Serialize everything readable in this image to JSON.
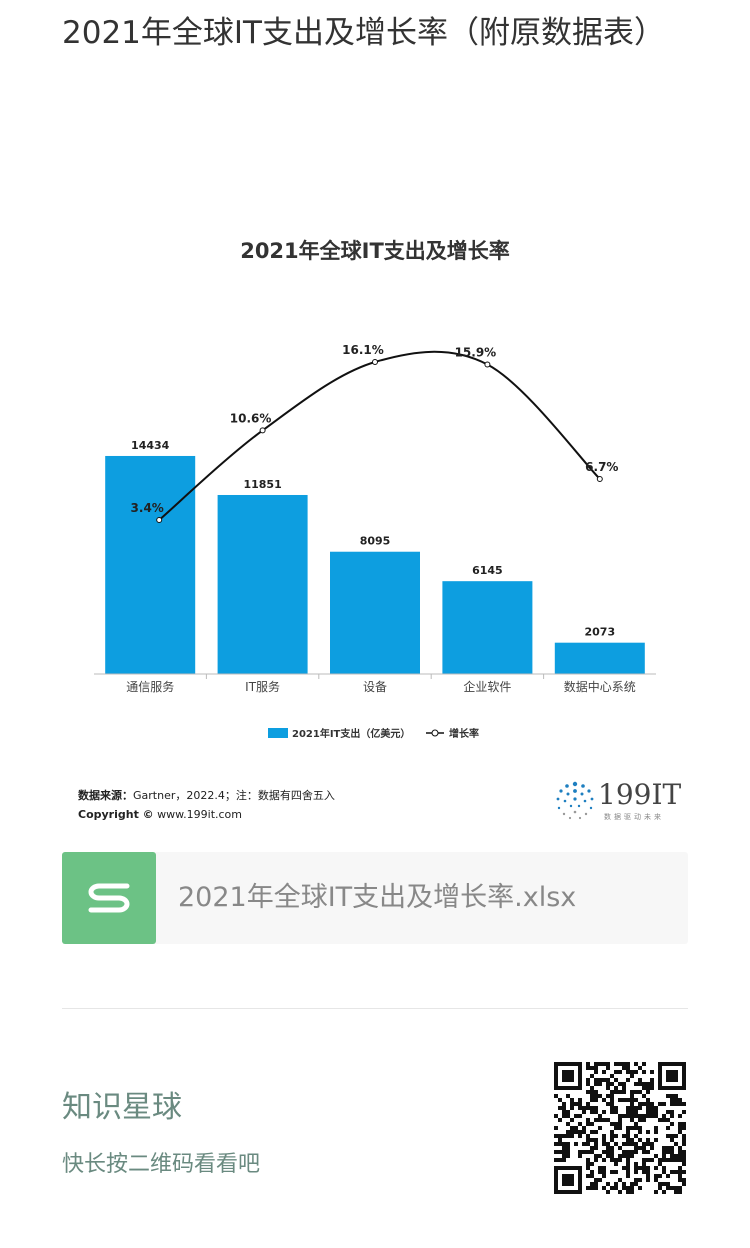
{
  "article": {
    "title": "2021年全球IT支出及增长率（附原数据表）"
  },
  "chart_data": {
    "type": "bar",
    "title": "2021年全球IT支出及增长率",
    "categories": [
      "通信服务",
      "IT服务",
      "设备",
      "企业软件",
      "数据中心系统"
    ],
    "series": [
      {
        "name": "2021年IT支出（亿美元）",
        "values": [
          14434,
          11851,
          8095,
          6145,
          2073
        ],
        "labels": [
          "14434",
          "11851",
          "8095",
          "6145",
          "2073"
        ],
        "color": "#0d9ee0"
      },
      {
        "name": "增长率",
        "type": "line",
        "values": [
          3.4,
          10.6,
          16.1,
          15.9,
          6.7
        ],
        "labels": [
          "3.4%",
          "10.6%",
          "16.1%",
          "15.9%",
          "6.7%"
        ],
        "color": "#111111"
      }
    ],
    "legend": "bottom"
  },
  "source": {
    "label": "数据来源：",
    "text": "Gartner，2022.4；注：数据有四舍五入",
    "copyright_label": "Copyright ©",
    "copyright_url": "www.199it.com"
  },
  "brand": {
    "name": "199IT",
    "slogan": "数据驱动未来",
    "color": "#1e7fc0"
  },
  "file": {
    "name": "2021年全球IT支出及增长率.xlsx",
    "icon": "spreadsheet-s-icon",
    "color": "#6cc285"
  },
  "promo": {
    "title": "知识星球",
    "subtitle": "快长按二维码看看吧",
    "qr_icon": "qr-code-icon"
  }
}
